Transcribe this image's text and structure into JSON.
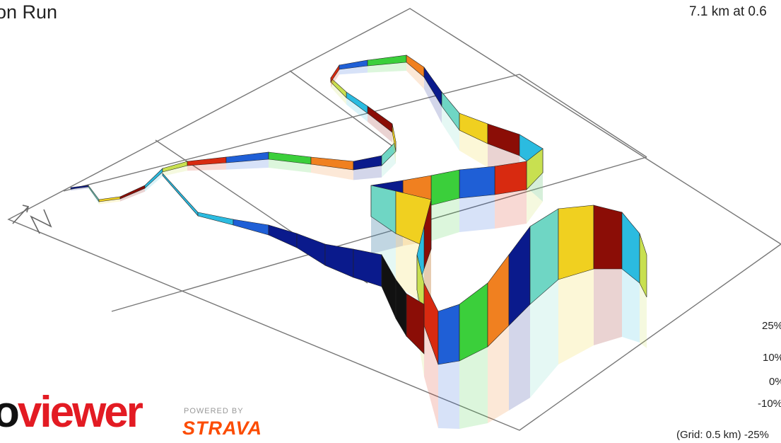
{
  "activity": {
    "title": "on Run",
    "stats": "7.1 km at 0.6"
  },
  "compass": {
    "label": "N"
  },
  "gradient_legend": {
    "labels": [
      "25%",
      "10%",
      "0%",
      "-10%",
      "-25%"
    ]
  },
  "grid_note": "(Grid: 0.5 km)",
  "branding": {
    "app_logo": "viewer",
    "powered_by": "POWERED BY",
    "partner_logo": "STRAVA"
  },
  "colors": {
    "strava_orange": "#fc4c02",
    "viewer_red": "#e31b23",
    "gradient_scale": [
      "#0a1a8c",
      "#1f5fd6",
      "#2bbbe0",
      "#6fd6c4",
      "#3bcf3b",
      "#c8e050",
      "#f0d020",
      "#f08020",
      "#d82a10",
      "#8b0d06"
    ]
  }
}
